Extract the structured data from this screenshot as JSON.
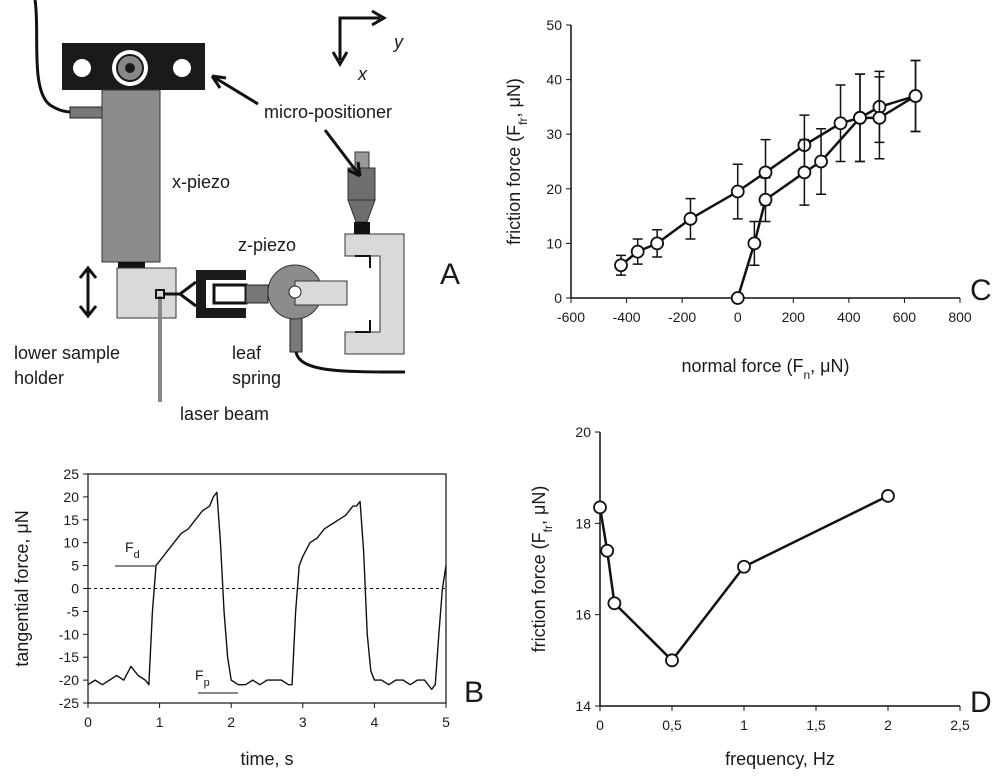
{
  "diagram": {
    "labels": {
      "micro_positioner": "micro-positioner",
      "x_piezo": "x-piezo",
      "z_piezo": "z-piezo",
      "lower_sample_holder": [
        "lower sample",
        "holder"
      ],
      "leaf_spring": [
        "leaf",
        "spring"
      ],
      "laser_beam": "laser beam",
      "axis_y": "y",
      "axis_x": "x",
      "panel_label": "A"
    }
  },
  "chart_data": [
    {
      "type": "line",
      "panel_label": "B",
      "xlabel": "time, s",
      "ylabel": "tangential force, μN",
      "xlim": [
        0,
        5
      ],
      "xticks": [
        0,
        1,
        2,
        3,
        4,
        5
      ],
      "ylim": [
        -25,
        25
      ],
      "yticks": [
        -25,
        -20,
        -15,
        -10,
        -5,
        0,
        5,
        10,
        15,
        20,
        25
      ],
      "frame": true,
      "reference_line": 0,
      "markers": false,
      "annotations": [
        [
          "F",
          "d"
        ],
        [
          "F",
          "p"
        ]
      ],
      "series": [
        {
          "color": "#111111",
          "x": [
            0,
            0.1,
            0.2,
            0.3,
            0.4,
            0.5,
            0.6,
            0.7,
            0.8,
            0.85,
            0.9,
            0.95,
            1.0,
            1.1,
            1.2,
            1.3,
            1.4,
            1.5,
            1.6,
            1.7,
            1.75,
            1.8,
            1.85,
            1.9,
            1.95,
            2.0,
            2.1,
            2.2,
            2.3,
            2.4,
            2.5,
            2.6,
            2.7,
            2.8,
            2.85,
            2.9,
            2.95,
            3.0,
            3.1,
            3.2,
            3.3,
            3.4,
            3.5,
            3.6,
            3.7,
            3.75,
            3.8,
            3.85,
            3.9,
            3.95,
            4.0,
            4.1,
            4.2,
            4.3,
            4.4,
            4.5,
            4.6,
            4.7,
            4.8,
            4.85,
            4.9,
            4.95,
            5.0
          ],
          "values": [
            -21,
            -20,
            -21,
            -20,
            -19,
            -20,
            -17,
            -19,
            -20,
            -21,
            -5,
            5,
            6,
            8,
            10,
            12,
            13,
            15,
            17,
            18,
            20,
            21,
            10,
            -5,
            -15,
            -20,
            -21,
            -21,
            -20,
            -21,
            -20,
            -20,
            -20,
            -21,
            -21,
            -5,
            5,
            7,
            10,
            11,
            13,
            14,
            15,
            16,
            18,
            18,
            19,
            8,
            -10,
            -18,
            -20,
            -20,
            -21,
            -20,
            -20,
            -21,
            -20,
            -20,
            -22,
            -21,
            -10,
            0,
            5
          ]
        }
      ]
    },
    {
      "type": "line",
      "panel_label": "C",
      "xlabel": [
        "normal force (F",
        "n",
        ", μN)"
      ],
      "ylabel": [
        "friction force (F",
        "fr",
        ", μN)"
      ],
      "xlim": [
        -600,
        800
      ],
      "xticks": [
        -600,
        -400,
        -200,
        0,
        200,
        400,
        600,
        800
      ],
      "ylim": [
        0,
        50
      ],
      "yticks": [
        0,
        10,
        20,
        30,
        40,
        50
      ],
      "frame": false,
      "markers": true,
      "series": [
        {
          "color": "#111111",
          "x": [
            -420,
            -360,
            -290,
            -170,
            0,
            100,
            240,
            370,
            440,
            510,
            640
          ],
          "values": [
            6,
            8.5,
            10,
            14.5,
            19.5,
            23,
            28,
            32,
            33,
            35,
            37
          ],
          "errors": [
            1.8,
            2.3,
            2.5,
            3.7,
            5,
            6,
            5.5,
            7,
            8,
            6.5,
            6.5
          ]
        },
        {
          "color": "#111111",
          "x": [
            0,
            60,
            100,
            240,
            300,
            440,
            510,
            640
          ],
          "values": [
            0,
            10,
            18,
            23,
            25,
            33,
            33,
            37
          ],
          "errors": [
            0,
            4,
            4,
            6,
            6,
            8,
            7.5,
            6.5
          ]
        }
      ]
    },
    {
      "type": "line",
      "panel_label": "D",
      "xlabel": "frequency, Hz",
      "ylabel": [
        "friction force (F",
        "fr",
        ", μN)"
      ],
      "xlim": [
        0,
        2.5
      ],
      "xticks": [
        0,
        {
          "value": 0.5,
          "label": "0,5"
        },
        1,
        {
          "value": 1.5,
          "label": "1,5"
        },
        2,
        {
          "value": 2.5,
          "label": "2,5"
        }
      ],
      "ylim": [
        14,
        20
      ],
      "yticks": [
        14,
        16,
        18,
        20
      ],
      "frame": false,
      "markers": true,
      "series": [
        {
          "color": "#111111",
          "x": [
            0,
            0.05,
            0.1,
            0.5,
            1,
            2
          ],
          "values": [
            18.35,
            17.4,
            16.25,
            15,
            17.05,
            18.6
          ]
        }
      ]
    }
  ]
}
